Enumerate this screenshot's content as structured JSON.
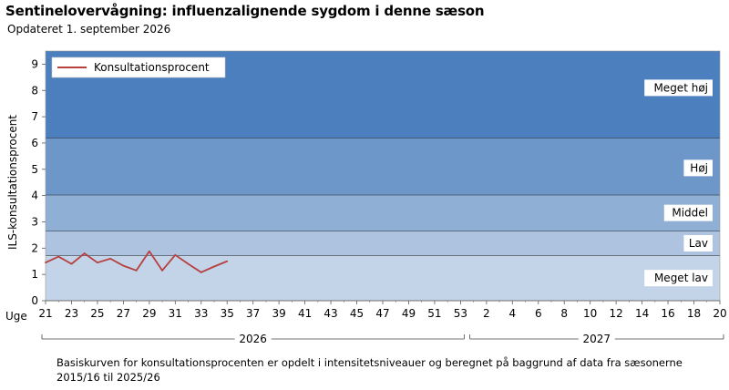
{
  "header": {
    "title": "Sentinelovervågning: influenzalignende sygdom i denne sæson",
    "subtitle": "Opdateret 1. september 2026"
  },
  "footnote": "Basiskurven for konsultationsprocenten er opdelt i intensitetsniveauer og beregnet på baggrund af data fra sæsonerne  2015/16  til 2025/26",
  "chart_data": {
    "type": "line",
    "title": "Sentinelovervågning: influenzalignende sygdom i denne sæson",
    "xlabel": "Uge",
    "ylabel": "ILS-konsultationsprocent",
    "ylim": [
      0,
      9.5
    ],
    "yticks": [
      0,
      1,
      2,
      3,
      4,
      5,
      6,
      7,
      8,
      9
    ],
    "weeks": [
      21,
      22,
      23,
      24,
      25,
      26,
      27,
      28,
      29,
      30,
      31,
      32,
      33,
      34,
      35,
      36,
      37,
      38,
      39,
      40,
      41,
      42,
      43,
      44,
      45,
      46,
      47,
      48,
      49,
      50,
      51,
      52,
      53,
      1,
      2,
      3,
      4,
      5,
      6,
      7,
      8,
      9,
      10,
      11,
      12,
      13,
      14,
      15,
      16,
      17,
      18,
      19,
      20
    ],
    "x_tick_labels": [
      "21",
      "23",
      "25",
      "27",
      "29",
      "31",
      "33",
      "35",
      "37",
      "39",
      "41",
      "43",
      "45",
      "47",
      "49",
      "51",
      "53",
      "2",
      "4",
      "6",
      "8",
      "10",
      "12",
      "14",
      "16",
      "18",
      "20"
    ],
    "x_tick_week_index": [
      0,
      2,
      4,
      6,
      8,
      10,
      12,
      14,
      16,
      18,
      20,
      22,
      24,
      26,
      28,
      30,
      32,
      34,
      36,
      38,
      40,
      42,
      44,
      46,
      48,
      50,
      52
    ],
    "year_labels": [
      {
        "label": "2026",
        "start_index": 0,
        "end_index": 32
      },
      {
        "label": "2027",
        "start_index": 33,
        "end_index": 52
      }
    ],
    "intensity_levels": [
      {
        "label": "Meget lav",
        "from": 0,
        "to": 1.72,
        "color": "#c3d3e8"
      },
      {
        "label": "Lav",
        "from": 1.72,
        "to": 2.65,
        "color": "#adc3df"
      },
      {
        "label": "Middel",
        "from": 2.65,
        "to": 4.03,
        "color": "#90afd4"
      },
      {
        "label": "Høj",
        "from": 4.03,
        "to": 6.2,
        "color": "#6e97c9"
      },
      {
        "label": "Meget høj",
        "from": 6.2,
        "to": 9.5,
        "color": "#4b7fbd"
      }
    ],
    "series": [
      {
        "name": "Konsultationsprocent",
        "color": "#b5403f",
        "x": [
          21,
          22,
          23,
          24,
          25,
          26,
          27,
          28,
          29,
          30,
          31,
          32,
          33,
          34,
          35
        ],
        "values": [
          1.45,
          1.68,
          1.4,
          1.8,
          1.45,
          1.6,
          1.33,
          1.15,
          1.88,
          1.15,
          1.74,
          1.4,
          1.08,
          1.3,
          1.5
        ]
      }
    ],
    "legend_position": "top-left"
  }
}
